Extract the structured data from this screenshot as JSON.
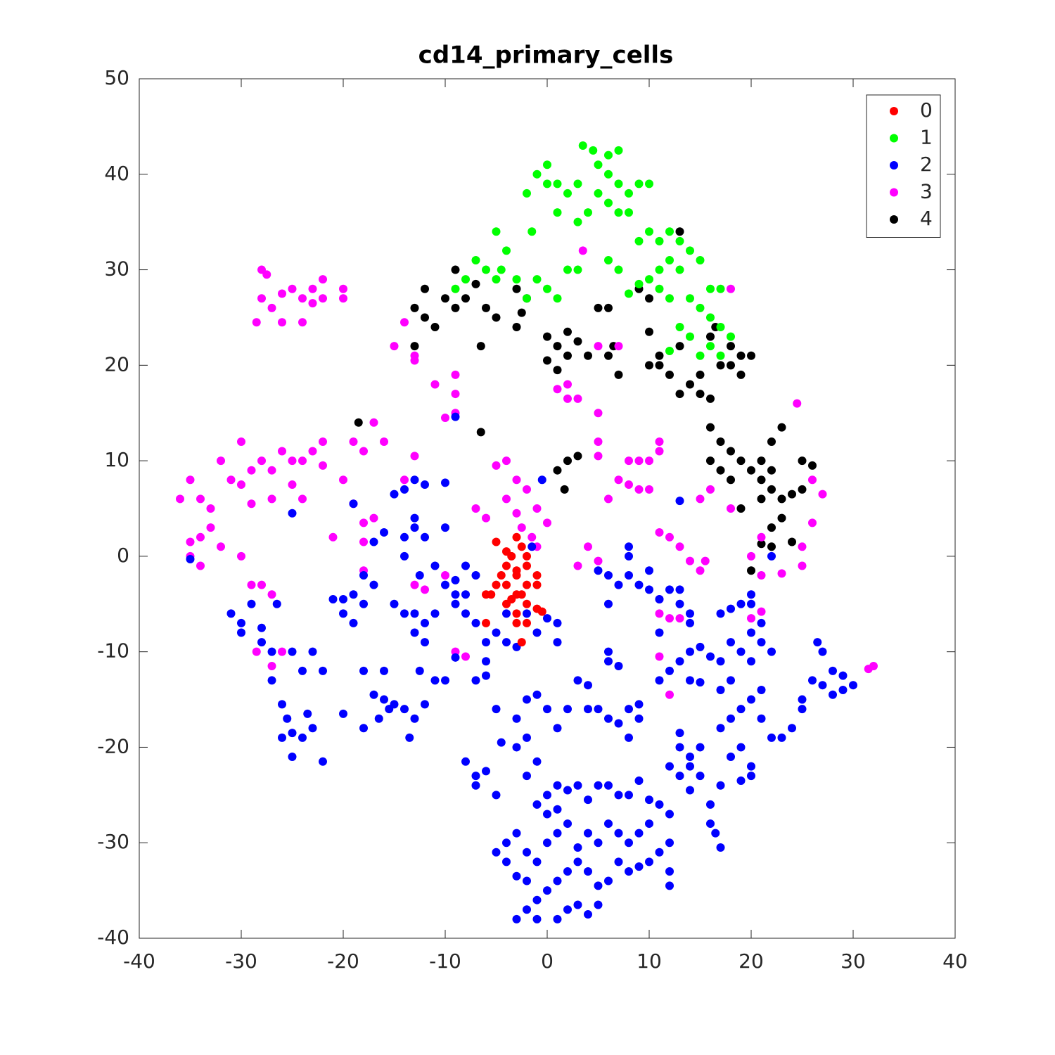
{
  "chart_data": {
    "type": "scatter",
    "title": "cd14_primary_cells",
    "xlim": [
      -40,
      40
    ],
    "xticks": [
      -40,
      -30,
      -20,
      -10,
      0,
      10,
      20,
      30,
      40
    ],
    "ylim": [
      -40,
      50
    ],
    "yticks": [
      -40,
      -30,
      -20,
      -10,
      0,
      10,
      20,
      30,
      40,
      50
    ],
    "legend": "northeast",
    "series": [
      {
        "name": "0",
        "color": "#ff0000",
        "x": [
          -3,
          -2.5,
          -3.5,
          -4,
          -2,
          -5,
          -3,
          -2,
          -4,
          -1,
          -3,
          -2,
          -4,
          -6,
          -5,
          -3,
          -1,
          -2,
          -3,
          -6,
          -2.5,
          -1,
          -4.5,
          -3.5,
          -2.5,
          -0.5,
          -5.5,
          -3,
          -2,
          -4
        ],
        "values": [
          2,
          1,
          0,
          -1,
          -1,
          1.5,
          -2,
          -3,
          -3,
          -3,
          -4,
          -5,
          -5,
          -4,
          -3,
          -6,
          -5.5,
          -7,
          -7,
          -7,
          -9,
          -2,
          -2,
          -4.5,
          -4,
          -5.8,
          -4,
          -1.5,
          0,
          0.5
        ]
      },
      {
        "name": "1",
        "color": "#00ff00",
        "x": [
          -9,
          -7,
          -6,
          -5,
          -4,
          -3,
          -2,
          -1,
          0,
          1,
          2,
          -1.5,
          -2,
          -1,
          0,
          0,
          1,
          2,
          1,
          3,
          3,
          3.5,
          4.5,
          5,
          6,
          7,
          6,
          7,
          8,
          9,
          10,
          6,
          5,
          7,
          8,
          6,
          7,
          9,
          10,
          11,
          12,
          13,
          11,
          12,
          13,
          14,
          15,
          10,
          11,
          12,
          14,
          15,
          16,
          17,
          16,
          17,
          18,
          13,
          14,
          15,
          12,
          16,
          17,
          4,
          3,
          8,
          9,
          -8,
          -5,
          -4.5
        ],
        "values": [
          28,
          31,
          30,
          34,
          32,
          29,
          27,
          29,
          28,
          27,
          30,
          34,
          38,
          40,
          41,
          39,
          39,
          38,
          36,
          35,
          39,
          43,
          42.5,
          41,
          42,
          42.5,
          40,
          39,
          38,
          39,
          39,
          37,
          38,
          36,
          36,
          31,
          30,
          33,
          34,
          33,
          34,
          33,
          30,
          31,
          30,
          32,
          31,
          29,
          28,
          27,
          27,
          26,
          28,
          28,
          25,
          24,
          23,
          24,
          23,
          21,
          21.5,
          22,
          21,
          36,
          30,
          27.5,
          28.5,
          29,
          29,
          30
        ]
      },
      {
        "name": "2",
        "color": "#0000ff",
        "x": [
          -35,
          -31,
          -30,
          -30,
          -29,
          -28,
          -28,
          -27,
          -27,
          -26.5,
          -26,
          -25.5,
          -25,
          -26,
          -25,
          -24,
          -23,
          -23.5,
          -22,
          -24,
          -23,
          -22,
          -25,
          -25,
          -21,
          -20,
          -20,
          -19,
          -18,
          -18,
          -19,
          -17,
          -20,
          -18,
          -17,
          -16,
          -15.5,
          -16.5,
          -18,
          -15,
          -14,
          -13,
          -13.5,
          -16,
          -12,
          -12.5,
          -15,
          -14,
          -13,
          -12,
          -12.5,
          -11,
          -10,
          -11,
          -9,
          -8,
          -8,
          -7,
          -9,
          -14,
          -13,
          -12,
          -14,
          -13,
          -14,
          -13,
          -12,
          -10,
          -15,
          -16,
          -17,
          -19,
          -10,
          -9,
          -6,
          -6,
          -6,
          -5,
          -4,
          -3,
          -2,
          -1,
          0,
          1,
          1,
          -1.5,
          -0.5,
          -7,
          -5,
          -3,
          -2,
          -2,
          -1,
          0,
          1,
          2,
          3,
          4,
          4,
          5,
          6,
          7,
          8,
          9,
          9,
          8,
          -8,
          -7,
          -7,
          -6,
          -5,
          -4.5,
          -3,
          -1,
          -2,
          0,
          1,
          2,
          3,
          4,
          5,
          6,
          7,
          8,
          9,
          10,
          11,
          12,
          12,
          11,
          10,
          9,
          8,
          7,
          6,
          5,
          4,
          3,
          2,
          1,
          0,
          -1,
          -2,
          -3,
          -1,
          1,
          2,
          3,
          4,
          5,
          -4,
          -3,
          -2,
          -1,
          0,
          1,
          2,
          3,
          4,
          5,
          6,
          7,
          8,
          9,
          10,
          0,
          -1,
          1,
          -5,
          -4,
          -3,
          -2,
          12,
          12,
          13,
          13,
          14,
          14,
          15,
          14,
          13,
          12,
          15,
          16,
          16,
          17,
          16.5,
          17,
          18,
          19,
          20,
          19,
          20,
          17,
          18,
          19,
          20,
          18,
          17,
          21,
          21,
          22,
          23,
          24,
          25,
          25,
          26,
          27,
          28,
          29,
          30,
          29,
          28,
          27,
          26.5,
          11,
          12,
          13,
          14,
          15,
          14,
          15,
          16,
          17,
          18,
          19,
          20,
          21,
          22,
          20,
          21,
          20,
          20,
          17,
          18,
          19,
          22,
          8,
          9,
          10,
          10,
          11,
          12,
          13,
          13,
          14,
          14,
          11,
          8,
          8,
          6,
          7,
          6,
          5,
          6,
          6,
          7,
          13,
          -9,
          -7,
          -4,
          -8,
          -9,
          -12,
          -13,
          -11,
          -10
        ],
        "values": [
          -0.3,
          -6,
          -7,
          -8,
          -5,
          -7.5,
          -9,
          -10,
          -13,
          -5,
          -15.5,
          -17,
          -18.5,
          -19,
          -21,
          -19,
          -18,
          -16.5,
          -21.5,
          -12,
          -10,
          -12,
          -10,
          4.5,
          -4.5,
          -4.5,
          -6,
          -4,
          -5,
          -2,
          -7,
          -3,
          -16.5,
          -12,
          -14.5,
          -15,
          -16,
          -17,
          -18,
          -15.5,
          -16,
          -17,
          -19,
          -12,
          -15.5,
          -12,
          -5,
          -6,
          -8,
          -7,
          -2,
          -6,
          -3,
          -1,
          -2.5,
          -1,
          -4,
          -2,
          -4,
          2,
          3,
          2,
          0,
          4,
          7,
          8,
          7.5,
          7.7,
          6.5,
          2.5,
          1.5,
          5.5,
          3,
          14.6,
          -9,
          -11,
          -12.5,
          -8,
          -9,
          -9.5,
          -6,
          -8,
          -6.5,
          -7,
          -9,
          1,
          8,
          -13,
          -16,
          -17,
          -19,
          -15,
          -14.5,
          -16,
          -18,
          -16,
          -13,
          -13.5,
          -16,
          -16,
          -17,
          -17.5,
          -16,
          -15.5,
          -17,
          -19,
          -21.5,
          -23,
          -24,
          -22.5,
          -25,
          -19.5,
          -20,
          -21.5,
          -23,
          -25,
          -24,
          -24.5,
          -24,
          -25.5,
          -24,
          -24,
          -25,
          -25,
          -23.5,
          -25.5,
          -26,
          -27,
          -30,
          -31,
          -32,
          -32.5,
          -33,
          -32,
          -34,
          -34.5,
          -33,
          -32,
          -33,
          -34,
          -35,
          -36,
          -37,
          -38,
          -38,
          -38,
          -37,
          -36.5,
          -37.5,
          -36.5,
          -30,
          -29,
          -31,
          -32,
          -30,
          -29,
          -28,
          -30.5,
          -29,
          -30,
          -28,
          -29,
          -30,
          -29,
          -28,
          -27,
          -26,
          -26.5,
          -31,
          -32,
          -33.5,
          -34,
          -33,
          -34.5,
          -18.5,
          -20,
          -21,
          -22,
          -23,
          -24.5,
          -23,
          -22,
          -20,
          -26,
          -28,
          -30.5,
          -29,
          -24,
          -21,
          -20,
          -22,
          -23.5,
          -23,
          -18,
          -17,
          -16,
          -15,
          -13,
          -14,
          -14,
          -17,
          -19,
          -19,
          -18,
          -16,
          -15,
          -13,
          -13.5,
          -14.5,
          -14,
          -13.5,
          -12.5,
          -12,
          -10,
          -9,
          -13,
          -12,
          -11,
          -10,
          -9.5,
          -13,
          -13.2,
          -10.5,
          -11,
          -9,
          -10,
          -11,
          -9,
          -10,
          -8,
          -7,
          -5,
          -4,
          -6,
          -5.5,
          -5,
          0,
          -2,
          -3,
          -1.5,
          -3.5,
          -4.5,
          -3.5,
          -3.5,
          -5,
          -6,
          -7,
          -8,
          0,
          1,
          -2,
          -3,
          -5,
          -1.5,
          -10,
          -11,
          -11.5,
          5.8,
          -10.6,
          -7,
          -6,
          -6,
          -5,
          -9,
          -6,
          -13,
          -13
        ]
      },
      {
        "name": "3",
        "color": "#ff00ff",
        "x": [
          -28,
          -27.5,
          -28,
          -27,
          -26,
          -25,
          -24,
          -23,
          -22,
          -22,
          -20,
          -20,
          -28.5,
          -26,
          -24,
          -23,
          -36,
          -35,
          -34,
          -33,
          -32,
          -31,
          -30,
          -30,
          -29,
          -28,
          -27,
          -26,
          -25,
          -24,
          -23,
          -22,
          -22,
          -29,
          -27,
          -25,
          -24,
          -33,
          -34,
          -35,
          -35,
          -34,
          -32,
          -30,
          -29,
          -28,
          -27,
          -28.5,
          -26,
          -27,
          -15,
          -14,
          -13,
          -13,
          -11,
          -9,
          -9,
          -9,
          -10,
          -19,
          -17,
          -18,
          -13,
          -14,
          -16,
          -18,
          -17,
          -20,
          -19,
          -21,
          -18,
          -18,
          -7,
          -6,
          -5,
          -4,
          -3,
          -3,
          -2,
          -1,
          -2.5,
          -1,
          0,
          -1.5,
          -4,
          2,
          2,
          1,
          3,
          5,
          5,
          5,
          8,
          9,
          8,
          9,
          7,
          10,
          11,
          11,
          6,
          10,
          11,
          12,
          13,
          11,
          11,
          12,
          13,
          14,
          15,
          15.5,
          15,
          16,
          18,
          21,
          20,
          20,
          21,
          21,
          23,
          25,
          25,
          26,
          27,
          26,
          24.5,
          11,
          12,
          -8,
          -9,
          -10,
          -13,
          -12,
          32,
          31.5,
          18,
          3.5,
          5,
          7,
          4,
          3,
          5
        ],
        "values": [
          30,
          29.5,
          27,
          26,
          27.5,
          28,
          27,
          28,
          29,
          27,
          28,
          27,
          24.5,
          24.5,
          24.5,
          26.5,
          6,
          8,
          6,
          5,
          10,
          8,
          12,
          7.5,
          9,
          10,
          9,
          11,
          10,
          10,
          11,
          12,
          9.5,
          5.5,
          6,
          7.5,
          6,
          3,
          2,
          1.5,
          0,
          -1,
          1,
          0,
          -3,
          -3,
          -4,
          -10,
          -10,
          -11.5,
          22,
          24.5,
          21,
          20.5,
          18,
          17,
          19,
          15,
          14.5,
          12,
          14,
          11,
          10.5,
          8,
          12,
          3.5,
          4,
          8,
          5.5,
          2,
          1.5,
          -1.5,
          5,
          4,
          9.5,
          10,
          8,
          4.5,
          7,
          5,
          3,
          1,
          3.5,
          2,
          6,
          18,
          16.5,
          17.5,
          16.5,
          15,
          12,
          10.5,
          10,
          10,
          7.5,
          7,
          8,
          10,
          12,
          11,
          6,
          7,
          2.5,
          2,
          1,
          -4.5,
          -6,
          -6.5,
          -6.5,
          -0.5,
          -1.5,
          -0.5,
          6,
          7,
          5,
          2,
          0,
          -6.5,
          -5.8,
          -2,
          -1.8,
          1,
          -1,
          3.5,
          6.5,
          8,
          16,
          -10.5,
          -14.5,
          -10.5,
          -10,
          -2,
          -3,
          -3.5,
          -11.5,
          -11.8,
          28,
          32,
          22,
          22,
          1,
          -1,
          -0.5
        ]
      },
      {
        "name": "4",
        "color": "#000000",
        "x": [
          -13,
          -12,
          -12,
          -11,
          -10,
          -9,
          -8,
          -9,
          -7,
          -6,
          -5,
          -3,
          -2,
          -3,
          -2.5,
          -13,
          -6.5,
          0,
          1,
          2,
          0,
          1,
          3,
          2,
          4,
          5,
          6,
          6,
          7,
          6.5,
          9,
          10,
          10,
          10,
          11,
          12,
          11,
          13,
          13,
          14,
          15,
          15,
          16,
          16,
          17,
          18,
          18,
          19,
          19,
          20,
          16.5,
          13,
          16,
          17,
          16,
          17,
          18,
          19,
          18,
          20,
          21,
          21,
          22,
          22,
          23,
          22,
          21,
          23,
          24,
          25,
          23,
          22,
          22,
          24,
          19,
          21,
          20,
          25,
          26,
          -18.5,
          -6.5,
          1,
          2,
          3,
          1.7
        ],
        "values": [
          26,
          28,
          25,
          24,
          27,
          30,
          27,
          26,
          28.5,
          26,
          25,
          28,
          27,
          24,
          25.5,
          22,
          22,
          23,
          22,
          21,
          20.5,
          19.5,
          22.5,
          23.5,
          21,
          26,
          26,
          21,
          19,
          22,
          28,
          27,
          23.5,
          20,
          21,
          19,
          20,
          22,
          17,
          18,
          19,
          17,
          16.5,
          23,
          20,
          22,
          20,
          19,
          21,
          21,
          24,
          34,
          13.5,
          12,
          10,
          9,
          11,
          10,
          8,
          9,
          8,
          10,
          9,
          12,
          13.5,
          7,
          6,
          6,
          6.5,
          7,
          4,
          3,
          1,
          1.5,
          5,
          1.3,
          -1.5,
          10,
          9.5,
          14,
          13,
          9,
          10,
          10.5,
          7
        ]
      }
    ]
  }
}
